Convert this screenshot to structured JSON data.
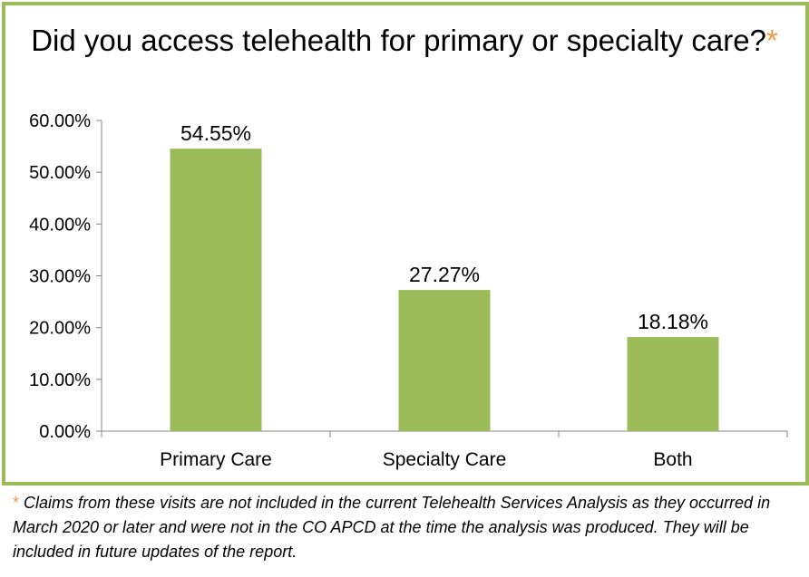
{
  "chart_data": {
    "type": "bar",
    "title": "Did you access telehealth for primary or specialty care?",
    "title_marker": "*",
    "categories": [
      "Primary Care",
      "Specialty Care",
      "Both"
    ],
    "values": [
      54.55,
      27.27,
      18.18
    ],
    "value_labels": [
      "54.55%",
      "27.27%",
      "18.18%"
    ],
    "ylim": [
      0,
      60
    ],
    "yticks": [
      0,
      10,
      20,
      30,
      40,
      50,
      60
    ],
    "ytick_labels": [
      "0.00%",
      "10.00%",
      "20.00%",
      "30.00%",
      "40.00%",
      "50.00%",
      "60.00%"
    ],
    "xlabel": "",
    "ylabel": "",
    "grid": false,
    "legend": "none",
    "colors": {
      "bar": "#9bbb59",
      "frame": "#9bbb59",
      "axis": "#868686",
      "asterisk": "#f79646"
    }
  },
  "footnote": {
    "marker": "*",
    "text": "Claims from these visits are not included in the current Telehealth Services Analysis as they occurred in March 2020 or later and were not in the CO APCD at the time the analysis was produced. They will be included in future updates of the report."
  }
}
